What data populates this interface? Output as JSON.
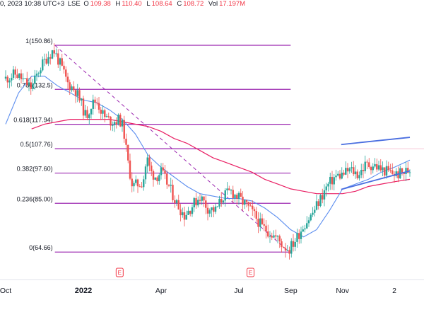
{
  "header": {
    "date_text": "0, 2023 10:38 UTC+3",
    "exchange_fragment": "LSE",
    "ohlc": [
      {
        "key": "O",
        "value": "109.38"
      },
      {
        "key": "H",
        "value": "110.40"
      },
      {
        "key": "L",
        "value": "108.64"
      },
      {
        "key": "C",
        "value": "108.72"
      },
      {
        "key": "Vol",
        "value": "17.197M"
      }
    ]
  },
  "colors": {
    "bull": "#26a69a",
    "bear": "#ef5350",
    "fib_line": "#9c27b0",
    "ma_fast": "#5b8def",
    "ma_slow": "#e91e63",
    "channel": "#4a6ee0",
    "dashed_trend": "#9c27b0"
  },
  "chart_data": {
    "type": "candlestick",
    "ylim": [
      60,
      155
    ],
    "x_tick_labels": [
      "Oct",
      "2022",
      "Apr",
      "Jul",
      "Sep",
      "Nov",
      "2"
    ],
    "x_tick_months": [
      0,
      3,
      6,
      9,
      11,
      13,
      15
    ],
    "fib_levels": [
      {
        "ratio": "1",
        "price": 150.86,
        "label": "1(150.86)"
      },
      {
        "ratio": "0.786",
        "price": 132.5,
        "label": "0.786(132.5)"
      },
      {
        "ratio": "0.618",
        "price": 117.94,
        "label": "0.618(117.94)"
      },
      {
        "ratio": "0.5",
        "price": 107.76,
        "label": "0.5(107.76)"
      },
      {
        "ratio": "0.382",
        "price": 97.6,
        "label": "0.382(97.60)"
      },
      {
        "ratio": "0.236",
        "price": 85.0,
        "label": "0.236(85.00)"
      },
      {
        "ratio": "0",
        "price": 64.66,
        "label": "0(64.66)"
      }
    ],
    "fib_month_range": [
      1.9,
      11.0
    ],
    "trendline": {
      "start": [
        1.9,
        150.86
      ],
      "end": [
        10.95,
        64.66
      ]
    },
    "channel": {
      "upper": [
        [
          12.95,
          109.5
        ],
        [
          15.6,
          112.5
        ]
      ],
      "lower": [
        [
          12.95,
          90.8
        ],
        [
          15.6,
          98.5
        ]
      ]
    },
    "events": [
      {
        "month": 4.4,
        "label": "E"
      },
      {
        "month": 9.45,
        "label": "E"
      }
    ],
    "ma_fast": [
      [
        0,
        118
      ],
      [
        0.5,
        131
      ],
      [
        1.0,
        138
      ],
      [
        1.5,
        138
      ],
      [
        2.0,
        134
      ],
      [
        2.5,
        131
      ],
      [
        3.0,
        128
      ],
      [
        3.5,
        127
      ],
      [
        4.0,
        124
      ],
      [
        4.5,
        120
      ],
      [
        5.0,
        114
      ],
      [
        5.5,
        105
      ],
      [
        6.0,
        100
      ],
      [
        6.5,
        96
      ],
      [
        7.0,
        92
      ],
      [
        7.5,
        89
      ],
      [
        8.0,
        88
      ],
      [
        8.5,
        87
      ],
      [
        9.0,
        87
      ],
      [
        9.5,
        86
      ],
      [
        10.0,
        83
      ],
      [
        10.5,
        79
      ],
      [
        11.0,
        74
      ],
      [
        11.5,
        71
      ],
      [
        12.0,
        74
      ],
      [
        12.5,
        82
      ],
      [
        13.0,
        91
      ],
      [
        13.5,
        93
      ],
      [
        14.0,
        95
      ],
      [
        14.5,
        98
      ],
      [
        15.0,
        100
      ],
      [
        15.6,
        103
      ]
    ],
    "ma_slow": [
      [
        1.0,
        116
      ],
      [
        1.5,
        118
      ],
      [
        2.0,
        119
      ],
      [
        2.5,
        120
      ],
      [
        3.0,
        120
      ],
      [
        3.5,
        120
      ],
      [
        4.0,
        120
      ],
      [
        4.5,
        119
      ],
      [
        5.0,
        118
      ],
      [
        5.5,
        117
      ],
      [
        6.0,
        115
      ],
      [
        6.5,
        112
      ],
      [
        7.0,
        110
      ],
      [
        7.5,
        107
      ],
      [
        8.0,
        104
      ],
      [
        8.5,
        102
      ],
      [
        9.0,
        100
      ],
      [
        9.5,
        98
      ],
      [
        10.0,
        95
      ],
      [
        10.5,
        93
      ],
      [
        11.0,
        91
      ],
      [
        11.5,
        90
      ],
      [
        12.0,
        89
      ],
      [
        12.5,
        89
      ],
      [
        13.0,
        89
      ],
      [
        13.5,
        90
      ],
      [
        14.0,
        92
      ],
      [
        14.5,
        93
      ],
      [
        15.0,
        94
      ],
      [
        15.6,
        95
      ]
    ],
    "price_path": [
      [
        0.0,
        137
      ],
      [
        0.4,
        139
      ],
      [
        0.7,
        136
      ],
      [
        1.0,
        133
      ],
      [
        1.3,
        141
      ],
      [
        1.6,
        146
      ],
      [
        1.85,
        149
      ],
      [
        2.1,
        143
      ],
      [
        2.4,
        135
      ],
      [
        2.7,
        132
      ],
      [
        2.9,
        127
      ],
      [
        3.1,
        121
      ],
      [
        3.3,
        126
      ],
      [
        3.5,
        128
      ],
      [
        3.8,
        121
      ],
      [
        4.1,
        119
      ],
      [
        4.4,
        120
      ],
      [
        4.55,
        116
      ],
      [
        4.7,
        103
      ],
      [
        4.9,
        92
      ],
      [
        5.1,
        93
      ],
      [
        5.3,
        94
      ],
      [
        5.45,
        104
      ],
      [
        5.6,
        98
      ],
      [
        5.8,
        96
      ],
      [
        6.0,
        98
      ],
      [
        6.3,
        92
      ],
      [
        6.6,
        85
      ],
      [
        6.9,
        80
      ],
      [
        7.2,
        84
      ],
      [
        7.5,
        88
      ],
      [
        7.8,
        83
      ],
      [
        8.1,
        82
      ],
      [
        8.4,
        88
      ],
      [
        8.7,
        90
      ],
      [
        9.0,
        87
      ],
      [
        9.3,
        84
      ],
      [
        9.6,
        80
      ],
      [
        9.9,
        75
      ],
      [
        10.2,
        73
      ],
      [
        10.5,
        70
      ],
      [
        10.75,
        67
      ],
      [
        10.95,
        66
      ],
      [
        11.2,
        70
      ],
      [
        11.5,
        76
      ],
      [
        11.8,
        80
      ],
      [
        12.1,
        86
      ],
      [
        12.4,
        92
      ],
      [
        12.7,
        96
      ],
      [
        13.0,
        97
      ],
      [
        13.3,
        99
      ],
      [
        13.6,
        97
      ],
      [
        13.9,
        101
      ],
      [
        14.2,
        101
      ],
      [
        14.5,
        99
      ],
      [
        14.8,
        98
      ],
      [
        15.1,
        97
      ],
      [
        15.4,
        98
      ],
      [
        15.6,
        99
      ]
    ]
  }
}
